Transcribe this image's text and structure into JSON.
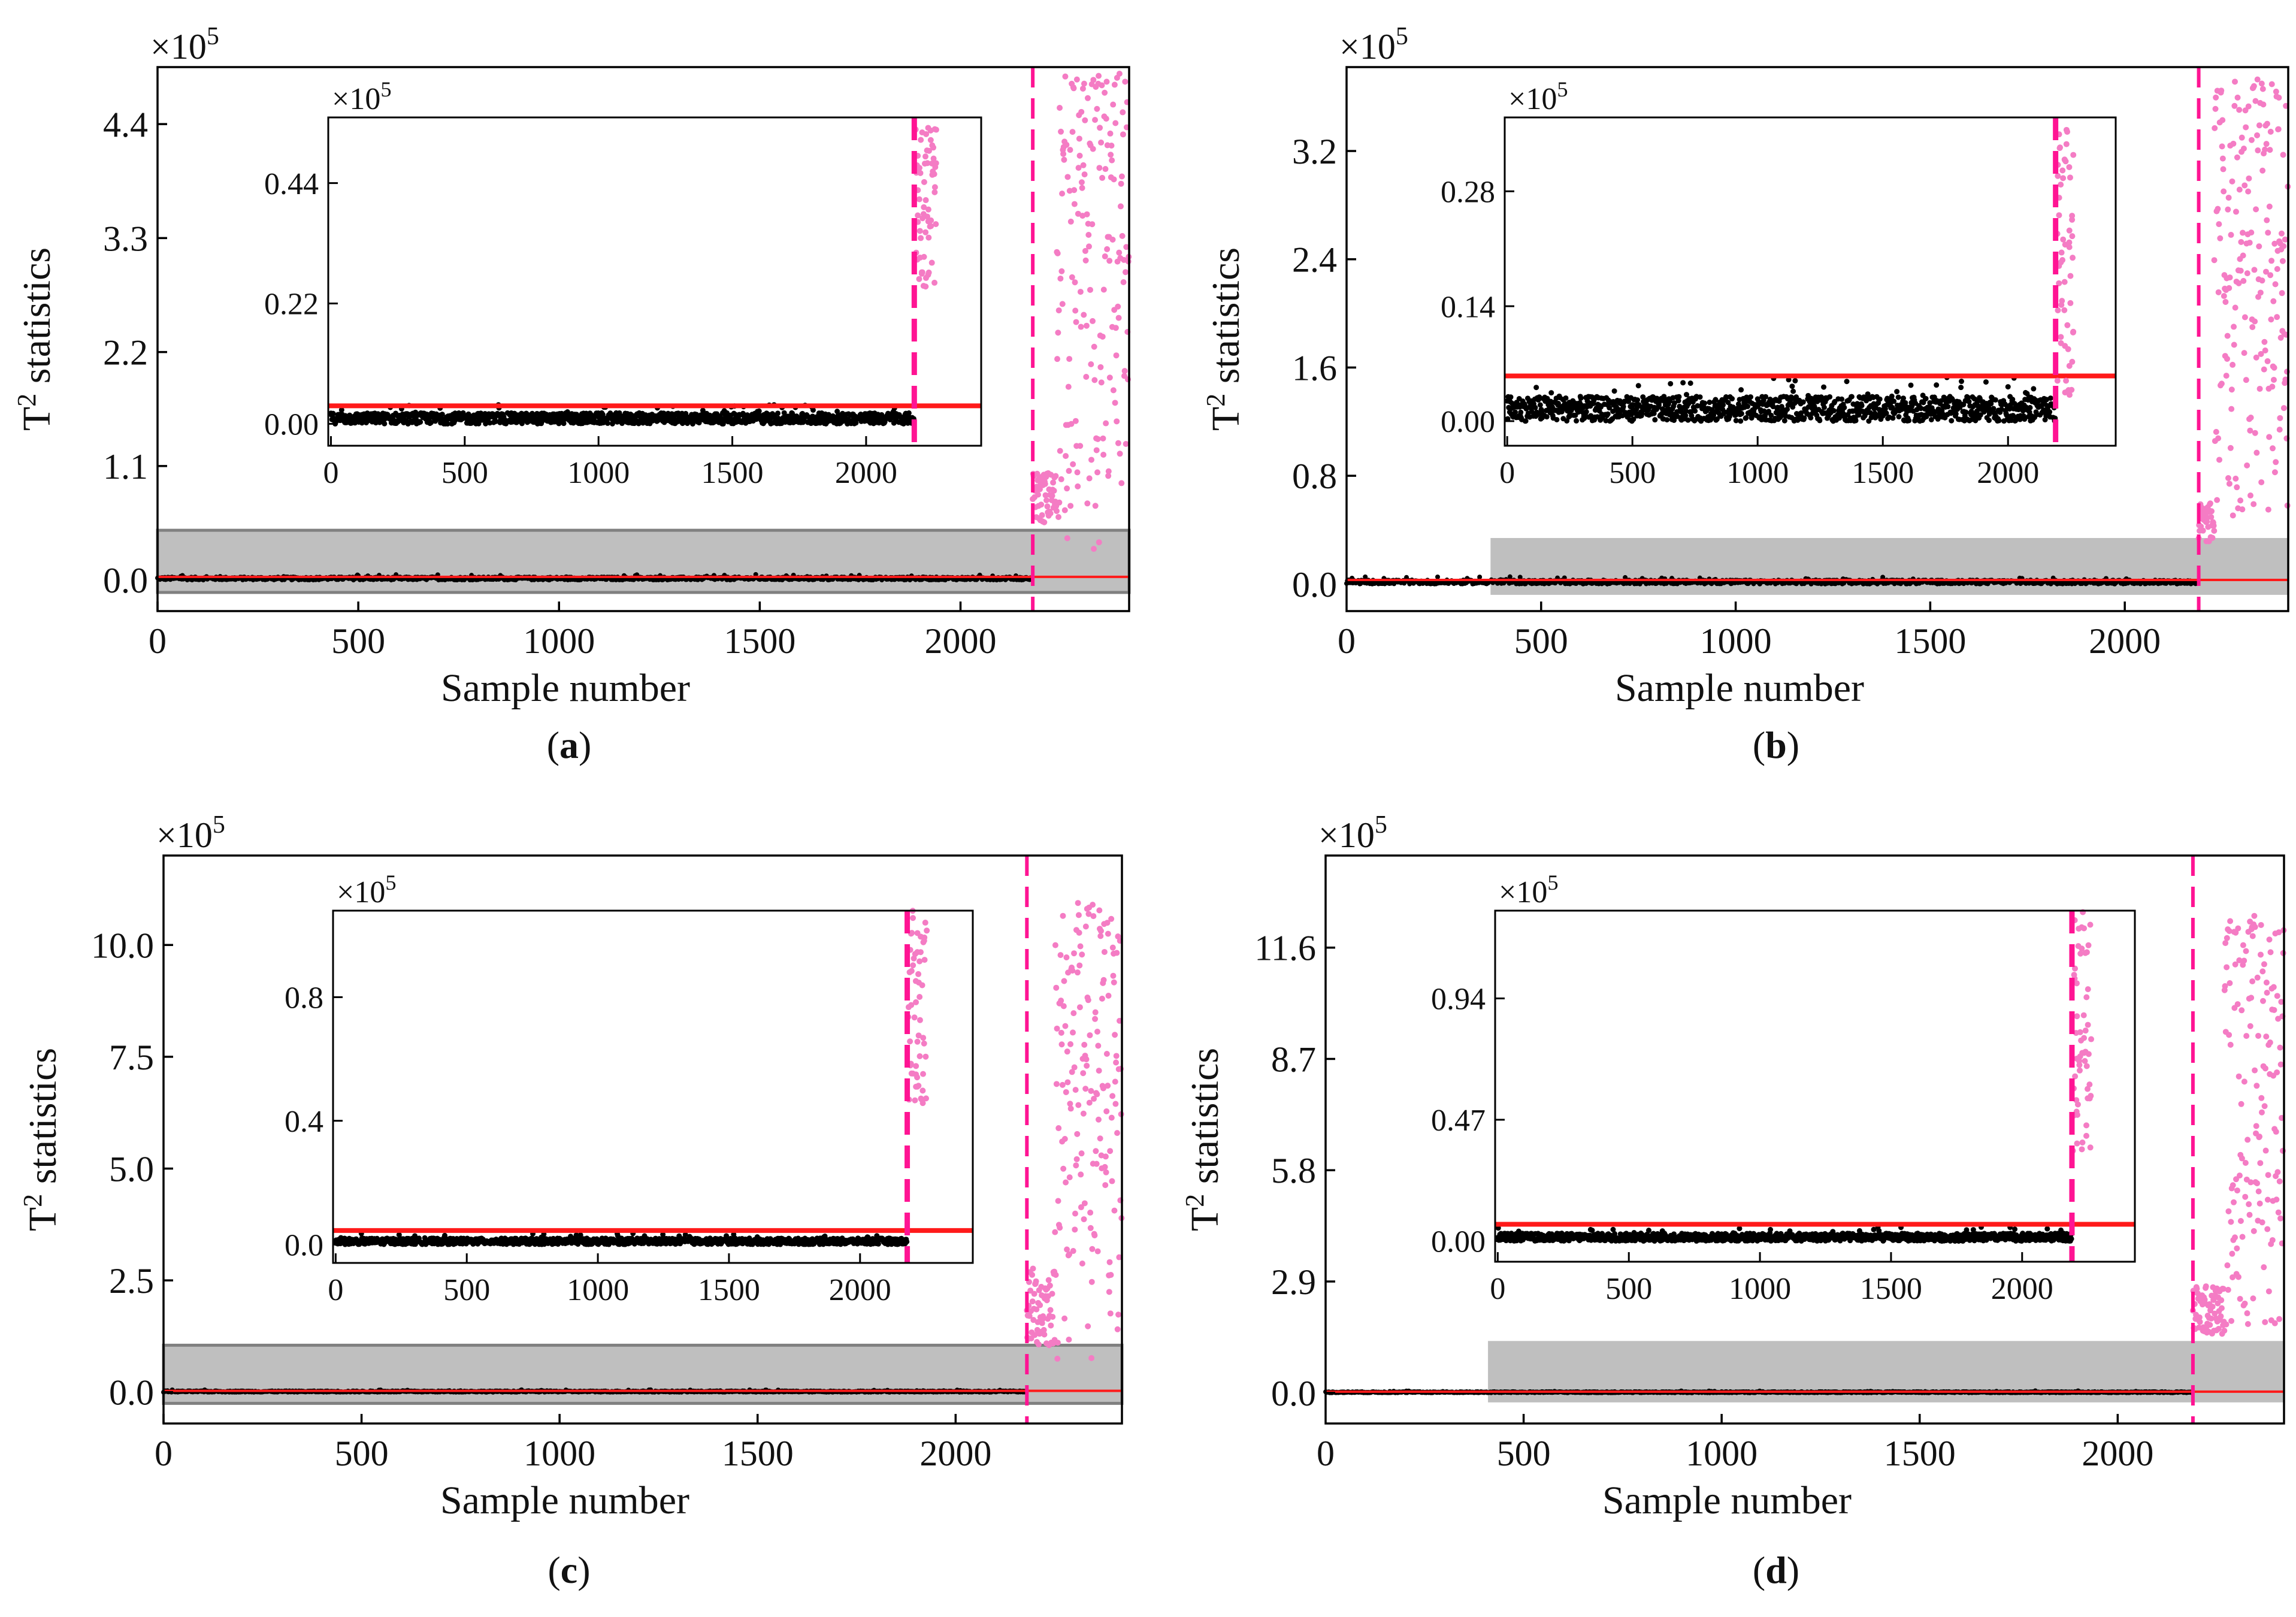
{
  "figure": {
    "panels": [
      {
        "id": "a",
        "caption": "a",
        "type": "scatter",
        "xlabel": "Sample number",
        "ylabel_base": "T",
        "ylabel_sup": "2",
        "ylabel_rest": " statistics",
        "multiplier": {
          "base": "×10",
          "exp": "5"
        },
        "xlim": [
          0,
          2420
        ],
        "ylim": [
          -0.3,
          4.95
        ],
        "xticks": [
          0,
          500,
          1000,
          1500,
          2000
        ],
        "yticks": [
          0.0,
          1.1,
          2.2,
          3.3,
          4.4
        ],
        "ytick_labels": [
          "0.0",
          "1.1",
          "2.2",
          "3.3",
          "4.4"
        ],
        "control_limit": 0.03,
        "fault_start": 2180,
        "fault_y_range": [
          0.2,
          4.9
        ],
        "fault_cluster1": {
          "n_start": 2180,
          "n_end": 2240,
          "y_range": [
            0.55,
            1.05
          ]
        },
        "highlight": {
          "x_range": [
            0,
            2420
          ],
          "y_range": [
            -0.12,
            0.48
          ],
          "border": true
        },
        "normal_band_max": 0.03,
        "inset": {
          "xlim": [
            -10,
            2430
          ],
          "ylim": [
            -0.04,
            0.56
          ],
          "xticks": [
            0,
            500,
            1000,
            1500,
            2000
          ],
          "yticks": [
            0.0,
            0.22,
            0.44
          ],
          "ytick_labels": [
            "0.00",
            "0.22",
            "0.44"
          ],
          "multiplier": {
            "base": "×10",
            "exp": "5"
          },
          "control_limit": 0.033,
          "fault_start": 2180,
          "fault_samples_end": 2260,
          "fault_y_range": [
            0.25,
            0.56
          ],
          "normal_band_max": 0.02
        }
      },
      {
        "id": "b",
        "caption": "b",
        "type": "scatter",
        "xlabel": "Sample number",
        "ylabel_base": "T",
        "ylabel_sup": "2",
        "ylabel_rest": " statistics",
        "multiplier": {
          "base": "×10",
          "exp": "5"
        },
        "xlim": [
          0,
          2420
        ],
        "ylim": [
          -0.2,
          3.82
        ],
        "xticks": [
          500,
          1000,
          1500,
          2000
        ],
        "xtick_labels_extra": [
          "0"
        ],
        "yticks": [
          0.0,
          0.8,
          1.6,
          2.4,
          3.2
        ],
        "ytick_labels": [
          "0.0",
          "0.8",
          "1.6",
          "2.4",
          "3.2"
        ],
        "control_limit": 0.03,
        "fault_start": 2190,
        "fault_y_range": [
          0.3,
          3.75
        ],
        "fault_cluster1": {
          "n_start": 2190,
          "n_end": 2230,
          "y_range": [
            0.3,
            0.6
          ]
        },
        "highlight": {
          "x_range": [
            370,
            2420
          ],
          "y_range": [
            -0.08,
            0.34
          ],
          "border": false
        },
        "normal_band_max": 0.03,
        "inset": {
          "xlim": [
            -10,
            2430
          ],
          "ylim": [
            -0.03,
            0.37
          ],
          "xticks": [
            0,
            500,
            1000,
            1500,
            2000
          ],
          "yticks": [
            0.0,
            0.14,
            0.28
          ],
          "ytick_labels": [
            "0.00",
            "0.14",
            "0.28"
          ],
          "multiplier": {
            "base": "×10",
            "exp": "5"
          },
          "control_limit": 0.055,
          "fault_start": 2190,
          "fault_samples_end": 2260,
          "fault_y_range": [
            0.03,
            0.36
          ],
          "normal_band_max": 0.03
        }
      },
      {
        "id": "c",
        "caption": "c",
        "type": "scatter",
        "xlabel": "Sample number",
        "ylabel_base": "T",
        "ylabel_sup": "2",
        "ylabel_rest": " statistics",
        "multiplier": {
          "base": "×10",
          "exp": "5"
        },
        "xlim": [
          0,
          2420
        ],
        "ylim": [
          -0.7,
          12.0
        ],
        "xticks": [
          0,
          500,
          1000,
          1500,
          2000
        ],
        "yticks": [
          0.0,
          2.5,
          5.0,
          7.5,
          10.0
        ],
        "ytick_labels": [
          "0.0",
          "2.5",
          "5.0",
          "7.5",
          "10.0"
        ],
        "control_limit": 0.03,
        "fault_start": 2180,
        "fault_y_range": [
          0.2,
          11.0
        ],
        "fault_cluster1": {
          "n_start": 2180,
          "n_end": 2250,
          "y_range": [
            1.0,
            2.8
          ]
        },
        "highlight": {
          "x_range": [
            0,
            2420
          ],
          "y_range": [
            -0.25,
            1.05
          ],
          "border": true
        },
        "normal_band_max": 0.03,
        "inset": {
          "xlim": [
            -10,
            2430
          ],
          "ylim": [
            -0.06,
            1.08
          ],
          "xticks": [
            0,
            500,
            1000,
            1500,
            2000
          ],
          "yticks": [
            0.0,
            0.4,
            0.8
          ],
          "ytick_labels": [
            "0.0",
            "0.4",
            "0.8"
          ],
          "multiplier": {
            "base": "×10",
            "exp": "5"
          },
          "control_limit": 0.045,
          "fault_start": 2180,
          "fault_samples_end": 2250,
          "fault_y_range": [
            0.45,
            1.08
          ],
          "normal_band_max": 0.02
        }
      },
      {
        "id": "d",
        "caption": "d",
        "type": "scatter",
        "xlabel": "Sample number",
        "ylabel_base": "T",
        "ylabel_sup": "2",
        "ylabel_rest": " statistics",
        "multiplier": {
          "base": "×10",
          "exp": "5"
        },
        "xlim": [
          0,
          2420
        ],
        "ylim": [
          -0.8,
          14.0
        ],
        "xticks": [
          500,
          1000,
          1500,
          2000
        ],
        "xtick_labels_extra": [
          "0"
        ],
        "yticks": [
          0.0,
          2.9,
          5.8,
          8.7,
          11.6
        ],
        "ytick_labels": [
          "0.0",
          "2.9",
          "5.8",
          "8.7",
          "11.6"
        ],
        "control_limit": 0.03,
        "fault_start": 2190,
        "fault_y_range": [
          1.4,
          12.5
        ],
        "fault_cluster1": {
          "n_start": 2190,
          "n_end": 2270,
          "y_range": [
            1.5,
            2.8
          ]
        },
        "highlight": {
          "x_range": [
            410,
            2420
          ],
          "y_range": [
            -0.25,
            1.35
          ],
          "border": false
        },
        "normal_band_max": 0.03,
        "inset": {
          "xlim": [
            -10,
            2430
          ],
          "ylim": [
            -0.08,
            1.28
          ],
          "xticks": [
            0,
            500,
            1000,
            1500,
            2000
          ],
          "yticks": [
            0.0,
            0.47,
            0.94
          ],
          "ytick_labels": [
            "0.00",
            "0.47",
            "0.94"
          ],
          "multiplier": {
            "base": "×10",
            "exp": "5"
          },
          "control_limit": 0.065,
          "fault_start": 2190,
          "fault_samples_end": 2260,
          "fault_y_range": [
            0.35,
            1.28
          ],
          "normal_band_max": 0.03
        }
      }
    ],
    "colors": {
      "normal": "#000000",
      "fault": "#f47cc4",
      "control_limit": "#ff1a1a",
      "fault_line": "#ff1493",
      "highlight": "#bfbfbf",
      "highlight_border": "#808080"
    }
  },
  "chart_data": [
    {
      "type": "scatter",
      "panel": "a",
      "title": "",
      "xlabel": "Sample number",
      "ylabel": "T2 statistics (×10^5)",
      "xlim": [
        0,
        2420
      ],
      "ylim": [
        -0.3,
        4.95
      ],
      "series": [
        {
          "name": "normal",
          "x_range": [
            0,
            2180
          ],
          "y_approx": 0.01
        },
        {
          "name": "fault",
          "x_range": [
            2180,
            2420
          ],
          "y_range": [
            0.2,
            4.9
          ]
        }
      ],
      "control_limit": 0.03,
      "fault_onset": 2180
    },
    {
      "type": "scatter",
      "panel": "b",
      "title": "",
      "xlabel": "Sample number",
      "ylabel": "T2 statistics (×10^5)",
      "xlim": [
        0,
        2420
      ],
      "ylim": [
        -0.2,
        3.82
      ],
      "series": [
        {
          "name": "normal",
          "x_range": [
            0,
            2190
          ],
          "y_approx": 0.01
        },
        {
          "name": "fault",
          "x_range": [
            2190,
            2420
          ],
          "y_range": [
            0.3,
            3.75
          ]
        }
      ],
      "control_limit": 0.03,
      "fault_onset": 2190
    },
    {
      "type": "scatter",
      "panel": "c",
      "title": "",
      "xlabel": "Sample number",
      "ylabel": "T2 statistics (×10^5)",
      "xlim": [
        0,
        2420
      ],
      "ylim": [
        -0.7,
        12.0
      ],
      "series": [
        {
          "name": "normal",
          "x_range": [
            0,
            2180
          ],
          "y_approx": 0.02
        },
        {
          "name": "fault",
          "x_range": [
            2180,
            2420
          ],
          "y_range": [
            0.2,
            11.0
          ]
        }
      ],
      "control_limit": 0.03,
      "fault_onset": 2180
    },
    {
      "type": "scatter",
      "panel": "d",
      "title": "",
      "xlabel": "Sample number",
      "ylabel": "T2 statistics (×10^5)",
      "xlim": [
        0,
        2420
      ],
      "ylim": [
        -0.8,
        14.0
      ],
      "series": [
        {
          "name": "normal",
          "x_range": [
            0,
            2190
          ],
          "y_approx": 0.02
        },
        {
          "name": "fault",
          "x_range": [
            2190,
            2420
          ],
          "y_range": [
            1.4,
            12.5
          ]
        }
      ],
      "control_limit": 0.03,
      "fault_onset": 2190
    }
  ]
}
